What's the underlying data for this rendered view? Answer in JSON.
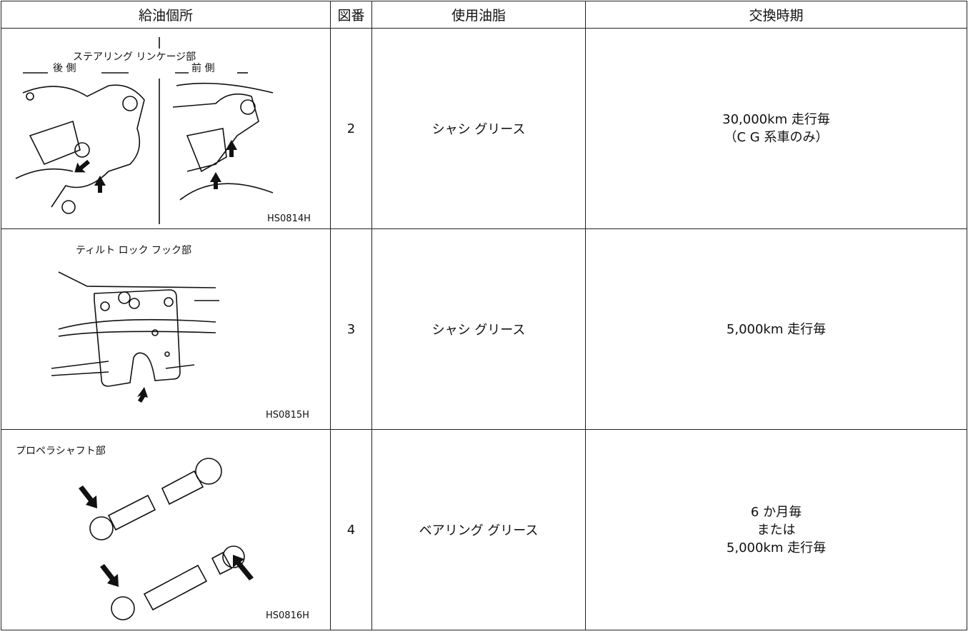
{
  "table": {
    "header": [
      "給油個所",
      "図番",
      "使用油脂",
      "交換時期"
    ],
    "rows": [
      {
        "figure": {
          "labels": [
            "ステアリング リンケージ部",
            "後 側",
            "前 側"
          ],
          "code": "HS0814H"
        },
        "number": "2",
        "lubricant": "シャシ グリース",
        "interval": [
          "30,000km 走行毎",
          "（C G 系車のみ）"
        ]
      },
      {
        "figure": {
          "labels": [
            "ティルト ロック フック部"
          ],
          "code": "HS0815H"
        },
        "number": "3",
        "lubricant": "シャシ グリース",
        "interval": [
          "5,000km 走行毎"
        ]
      },
      {
        "figure": {
          "labels": [
            "プロペラシャフト部"
          ],
          "code": "HS0816H"
        },
        "number": "4",
        "lubricant": "ベアリング グリース",
        "interval": [
          "6 か月毎",
          "または",
          "5,000km 走行毎"
        ]
      }
    ]
  }
}
